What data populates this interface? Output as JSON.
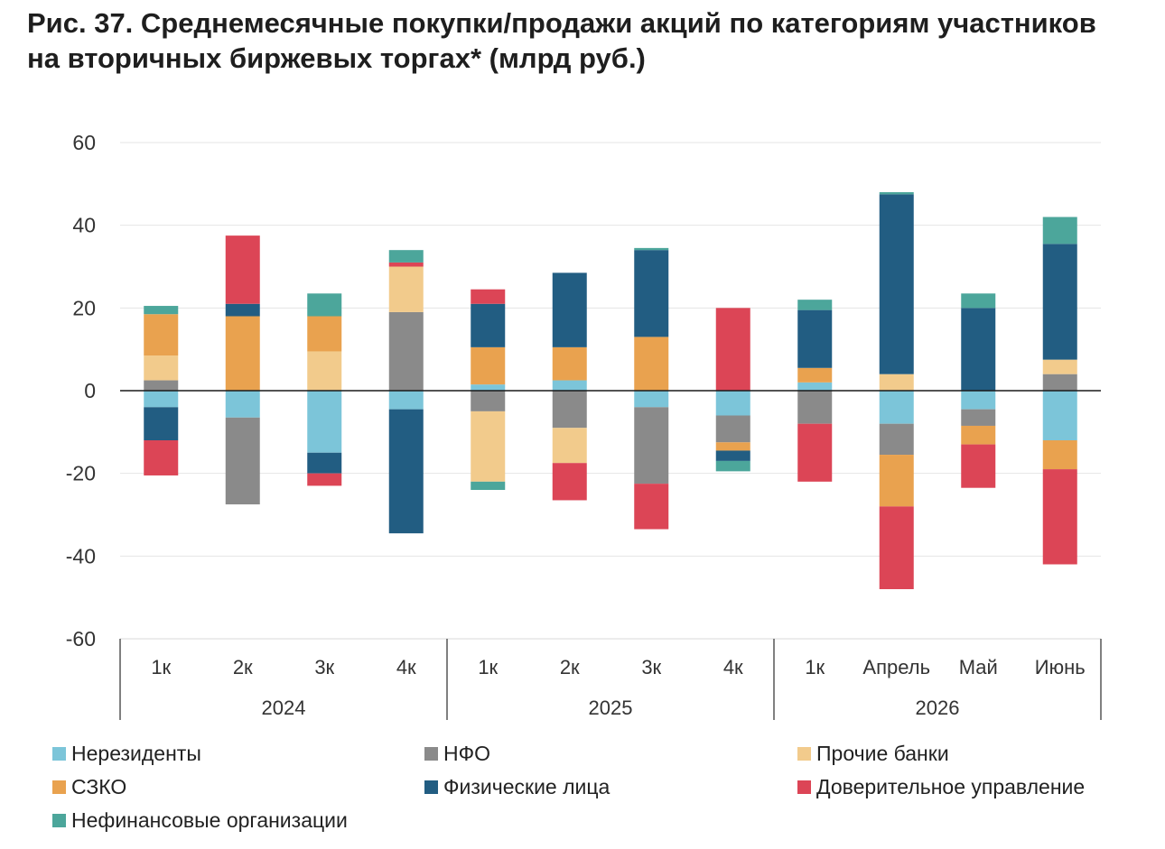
{
  "title": {
    "line1": "Рис. 37. Среднемесячные покупки/продажи акций по категориям участников",
    "line2": "на вторичных биржевых торгах* (млрд руб.)"
  },
  "chart_data": {
    "type": "bar",
    "stacked": true,
    "title": "Рис. 37. Среднемесячные покупки/продажи акций по категориям участников на вторичных биржевых торгах* (млрд руб.)",
    "xlabel": "",
    "ylabel": "",
    "ylim": [
      -60,
      60
    ],
    "yticks": [
      60,
      40,
      20,
      0,
      -20,
      -40,
      -60
    ],
    "ytick_labels": [
      "60",
      "40",
      "20",
      "0",
      "-20",
      "-40",
      "-60"
    ],
    "grid": true,
    "legend_position": "bottom",
    "categories": [
      "1к",
      "2к",
      "3к",
      "4к",
      "1к",
      "2к",
      "3к",
      "4к",
      "1к",
      "Апрель",
      "Май",
      "Июнь"
    ],
    "groups": [
      {
        "label": "2024",
        "count": 4
      },
      {
        "label": "2025",
        "count": 4
      },
      {
        "label": "2026",
        "count": 4
      }
    ],
    "series": [
      {
        "name": "Нерезиденты",
        "color": "#7cc5d9",
        "values": [
          -4,
          -6.5,
          -15,
          -4.5,
          1.5,
          2.5,
          -4,
          -6,
          2,
          -8,
          -4.5,
          -12
        ]
      },
      {
        "name": "НФО",
        "color": "#8a8a8a",
        "values": [
          2.5,
          -21,
          0,
          19,
          -5,
          -9,
          -18.5,
          -6.5,
          -8,
          -7.5,
          -4,
          4
        ]
      },
      {
        "name": "Прочие банки",
        "color": "#f2cb8c",
        "values": [
          6,
          0,
          9.5,
          11,
          -17,
          -8.5,
          0,
          0,
          0,
          4,
          0,
          3.5
        ]
      },
      {
        "name": "СЗКО",
        "color": "#e9a24f",
        "values": [
          10,
          18,
          8.5,
          0,
          9,
          8,
          13,
          -2,
          3.5,
          -12.5,
          -4.5,
          -7
        ]
      },
      {
        "name": "Физические лица",
        "color": "#225d82",
        "values": [
          -8,
          3,
          -5,
          -30,
          10.5,
          18,
          21,
          -2.5,
          14,
          43.5,
          20,
          28
        ]
      },
      {
        "name": "Доверительное управление",
        "color": "#dc4556",
        "values": [
          -8.5,
          16.5,
          -3,
          1,
          3.5,
          -9,
          -11,
          20,
          -14,
          -20,
          -10.5,
          -23
        ]
      },
      {
        "name": "Нефинансовые организации",
        "color": "#4ca69b",
        "values": [
          2,
          0,
          5.5,
          3,
          -2,
          0,
          0.5,
          -2.5,
          2.5,
          0.5,
          3.5,
          6.5
        ]
      }
    ]
  },
  "legend": {
    "items": [
      {
        "label": "Нерезиденты",
        "color": "#7cc5d9"
      },
      {
        "label": "НФО",
        "color": "#8a8a8a"
      },
      {
        "label": "Прочие банки",
        "color": "#f2cb8c"
      },
      {
        "label": "СЗКО",
        "color": "#e9a24f"
      },
      {
        "label": "Физические лица",
        "color": "#225d82"
      },
      {
        "label": "Доверительное управление",
        "color": "#dc4556"
      },
      {
        "label": "Нефинансовые организации",
        "color": "#4ca69b"
      }
    ]
  }
}
